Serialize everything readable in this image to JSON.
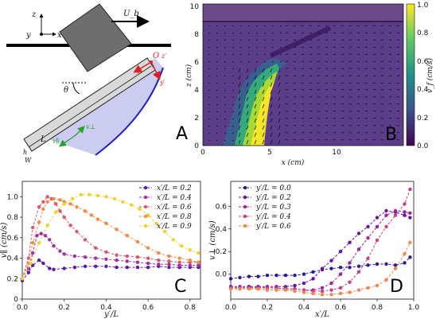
{
  "panel_letters": {
    "a": "A",
    "b": "B",
    "c": "C",
    "d": "D"
  },
  "schematic": {
    "U_label": "U_b",
    "z_axis": "z",
    "y_axis": "y",
    "x_axis": "x",
    "origin": "O",
    "x_prime": "x′",
    "y_prime": "y′",
    "z_prime": "z′",
    "theta": "θ",
    "L": "L",
    "h": "h",
    "W": "W",
    "v_parallel": "v∥",
    "v_perp": "v⊥",
    "colors": {
      "plate": "#d9d9d9",
      "block": "#6e6e6e",
      "flow": "#c6c6f0",
      "curve": "#2020c0",
      "axes_red": "#e02020",
      "vec_green": "#2ca02c"
    }
  },
  "panel_b": {
    "xlabel": "x (cm)",
    "ylabel": "z (cm)",
    "colorbar_label": "v_f (cm/s)",
    "x_ticks": [
      "0",
      "5",
      "10"
    ],
    "y_ticks": [
      "0",
      "2",
      "4",
      "6",
      "8",
      "10"
    ],
    "cbar_ticks": [
      "0.0",
      "0.2",
      "0.4",
      "0.6",
      "0.8",
      "1.0"
    ],
    "colormap": [
      "#440154",
      "#3b528b",
      "#21918c",
      "#5ec962",
      "#fde725"
    ]
  },
  "chart_data": [
    {
      "type": "line",
      "panel": "C",
      "xlabel": "y′/L",
      "ylabel": "v∥ (cm/s)",
      "xlim": [
        0,
        0.85
      ],
      "ylim": [
        0,
        1.15
      ],
      "x_ticks": [
        "0.0",
        "0.2",
        "0.4",
        "0.6",
        "0.8"
      ],
      "y_ticks": [
        "0",
        "0.2",
        "0.4",
        "0.6",
        "0.8",
        "1.0"
      ],
      "legend_position": "top-right",
      "series": [
        {
          "name": "x′/L = 0.2",
          "color": "#5b1ba6",
          "x": [
            0,
            0.03,
            0.05,
            0.08,
            0.1,
            0.13,
            0.15,
            0.2,
            0.25,
            0.3,
            0.35,
            0.4,
            0.45,
            0.5,
            0.55,
            0.6,
            0.65,
            0.7,
            0.75,
            0.8,
            0.84
          ],
          "y": [
            0.18,
            0.26,
            0.33,
            0.38,
            0.35,
            0.3,
            0.29,
            0.3,
            0.31,
            0.32,
            0.32,
            0.32,
            0.31,
            0.31,
            0.31,
            0.31,
            0.32,
            0.31,
            0.31,
            0.31,
            0.31
          ]
        },
        {
          "name": "x′/L = 0.4",
          "color": "#a42fa3",
          "x": [
            0,
            0.03,
            0.05,
            0.07,
            0.09,
            0.11,
            0.13,
            0.15,
            0.18,
            0.2,
            0.25,
            0.3,
            0.35,
            0.4,
            0.45,
            0.5,
            0.55,
            0.6,
            0.65,
            0.7,
            0.75,
            0.8,
            0.84
          ],
          "y": [
            0.2,
            0.3,
            0.45,
            0.62,
            0.64,
            0.62,
            0.58,
            0.52,
            0.47,
            0.44,
            0.42,
            0.41,
            0.4,
            0.39,
            0.38,
            0.37,
            0.36,
            0.35,
            0.34,
            0.34,
            0.33,
            0.33,
            0.33
          ]
        },
        {
          "name": "x′/L = 0.6",
          "color": "#d8576b",
          "x": [
            0,
            0.03,
            0.05,
            0.08,
            0.1,
            0.12,
            0.14,
            0.16,
            0.18,
            0.2,
            0.23,
            0.26,
            0.3,
            0.35,
            0.4,
            0.45,
            0.5,
            0.55,
            0.6,
            0.65,
            0.7,
            0.75,
            0.8,
            0.84
          ],
          "y": [
            0.2,
            0.4,
            0.7,
            0.9,
            0.95,
            1.0,
            0.98,
            0.93,
            0.86,
            0.8,
            0.72,
            0.66,
            0.58,
            0.5,
            0.46,
            0.43,
            0.42,
            0.41,
            0.4,
            0.38,
            0.37,
            0.36,
            0.36,
            0.36
          ]
        },
        {
          "name": "x′/L = 0.8",
          "color": "#f48a43",
          "x": [
            0,
            0.03,
            0.05,
            0.08,
            0.1,
            0.12,
            0.15,
            0.18,
            0.2,
            0.23,
            0.26,
            0.3,
            0.33,
            0.36,
            0.4,
            0.45,
            0.5,
            0.55,
            0.6,
            0.65,
            0.7,
            0.75,
            0.8,
            0.84
          ],
          "y": [
            0.2,
            0.35,
            0.55,
            0.75,
            0.88,
            0.95,
            0.98,
            0.97,
            0.95,
            0.93,
            0.9,
            0.86,
            0.82,
            0.78,
            0.74,
            0.68,
            0.62,
            0.56,
            0.5,
            0.45,
            0.42,
            0.4,
            0.38,
            0.36
          ]
        },
        {
          "name": "x′/L = 0.9",
          "color": "#f0d030",
          "x": [
            0,
            0.04,
            0.08,
            0.12,
            0.16,
            0.2,
            0.24,
            0.28,
            0.32,
            0.36,
            0.4,
            0.44,
            0.48,
            0.52,
            0.56,
            0.6,
            0.64,
            0.68,
            0.72,
            0.76,
            0.8,
            0.84
          ],
          "y": [
            0.2,
            0.35,
            0.55,
            0.72,
            0.85,
            0.93,
            0.98,
            1.02,
            1.02,
            1.01,
            1.0,
            0.98,
            0.95,
            0.92,
            0.88,
            0.82,
            0.74,
            0.66,
            0.58,
            0.52,
            0.48,
            0.45
          ]
        }
      ]
    },
    {
      "type": "line",
      "panel": "D",
      "xlabel": "x′/L",
      "ylabel": "v⊥ (cm/s)",
      "xlim": [
        0,
        1.0
      ],
      "ylim": [
        -0.22,
        0.82
      ],
      "x_ticks": [
        "0.0",
        "0.2",
        "0.4",
        "0.6",
        "0.8",
        "1.0"
      ],
      "y_ticks": [
        "0.0",
        "0.2",
        "0.4",
        "0.6"
      ],
      "legend_position": "top-left",
      "series": [
        {
          "name": "y′/L = 0.0",
          "color": "#2a1a9c",
          "x": [
            0,
            0.05,
            0.1,
            0.15,
            0.2,
            0.25,
            0.3,
            0.35,
            0.4,
            0.45,
            0.5,
            0.55,
            0.6,
            0.65,
            0.7,
            0.75,
            0.8,
            0.85,
            0.9,
            0.95,
            0.98
          ],
          "y": [
            -0.04,
            -0.03,
            -0.02,
            -0.02,
            -0.01,
            -0.01,
            -0.01,
            -0.01,
            0.0,
            0.02,
            0.04,
            0.05,
            0.06,
            0.06,
            0.07,
            0.08,
            0.09,
            0.09,
            0.08,
            0.1,
            0.15
          ]
        },
        {
          "name": "y′/L = 0.2",
          "color": "#6a0fa8",
          "x": [
            0,
            0.05,
            0.1,
            0.15,
            0.2,
            0.25,
            0.3,
            0.35,
            0.4,
            0.45,
            0.5,
            0.55,
            0.6,
            0.65,
            0.7,
            0.75,
            0.8,
            0.85,
            0.9,
            0.95,
            0.98
          ],
          "y": [
            -0.11,
            -0.11,
            -0.11,
            -0.11,
            -0.11,
            -0.11,
            -0.11,
            -0.1,
            -0.08,
            -0.04,
            0.05,
            0.12,
            0.2,
            0.28,
            0.36,
            0.42,
            0.5,
            0.56,
            0.55,
            0.52,
            0.5
          ]
        },
        {
          "name": "y′/L = 0.3",
          "color": "#9c2398",
          "x": [
            0,
            0.05,
            0.1,
            0.15,
            0.2,
            0.25,
            0.3,
            0.35,
            0.4,
            0.45,
            0.5,
            0.55,
            0.6,
            0.65,
            0.7,
            0.75,
            0.8,
            0.85,
            0.9,
            0.95,
            0.98
          ],
          "y": [
            -0.12,
            -0.12,
            -0.12,
            -0.12,
            -0.12,
            -0.12,
            -0.13,
            -0.13,
            -0.14,
            -0.14,
            -0.12,
            -0.08,
            0.0,
            0.1,
            0.22,
            0.32,
            0.42,
            0.52,
            0.56,
            0.55,
            0.54
          ]
        },
        {
          "name": "y′/L = 0.4",
          "color": "#c93d86",
          "x": [
            0,
            0.05,
            0.1,
            0.15,
            0.2,
            0.25,
            0.3,
            0.35,
            0.4,
            0.45,
            0.5,
            0.55,
            0.6,
            0.65,
            0.7,
            0.75,
            0.8,
            0.85,
            0.9,
            0.95,
            0.98
          ],
          "y": [
            -0.12,
            -0.12,
            -0.12,
            -0.12,
            -0.12,
            -0.12,
            -0.13,
            -0.13,
            -0.14,
            -0.15,
            -0.15,
            -0.14,
            -0.12,
            -0.07,
            0.02,
            0.14,
            0.3,
            0.42,
            0.52,
            0.62,
            0.75
          ]
        },
        {
          "name": "y′/L = 0.6",
          "color": "#f3844a",
          "x": [
            0,
            0.05,
            0.1,
            0.15,
            0.2,
            0.25,
            0.3,
            0.35,
            0.4,
            0.45,
            0.5,
            0.55,
            0.6,
            0.65,
            0.7,
            0.75,
            0.8,
            0.85,
            0.9,
            0.95,
            0.98
          ],
          "y": [
            -0.13,
            -0.13,
            -0.13,
            -0.13,
            -0.14,
            -0.14,
            -0.14,
            -0.15,
            -0.16,
            -0.17,
            -0.18,
            -0.18,
            -0.17,
            -0.16,
            -0.14,
            -0.12,
            -0.1,
            -0.05,
            0.05,
            0.18,
            0.28
          ]
        }
      ]
    }
  ]
}
